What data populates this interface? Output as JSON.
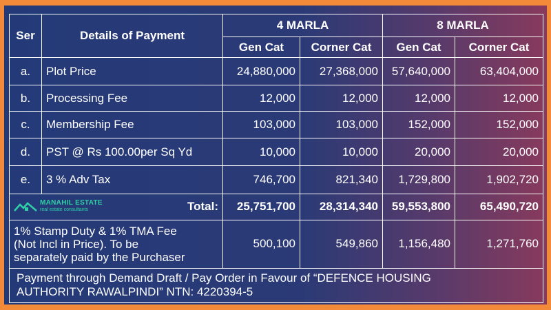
{
  "colors": {
    "accent_border": "#f28a3a",
    "logo_green": "#2fd0a5"
  },
  "header": {
    "ser": "Ser",
    "details": "Details of Payment",
    "group_4": "4 MARLA",
    "group_8": "8 MARLA",
    "sub_gen": "Gen Cat",
    "sub_corner": "Corner Cat"
  },
  "rows": [
    {
      "ser": "a.",
      "label": "Plot Price",
      "v": [
        "24,880,000",
        "27,368,000",
        "57,640,000",
        "63,404,000"
      ]
    },
    {
      "ser": "b.",
      "label": "Processing Fee",
      "v": [
        "12,000",
        "12,000",
        "12,000",
        "12,000"
      ]
    },
    {
      "ser": "c.",
      "label": "Membership Fee",
      "v": [
        "103,000",
        "103,000",
        "152,000",
        "152,000"
      ]
    },
    {
      "ser": "d.",
      "label": "PST @ Rs 100.00per Sq Yd",
      "v": [
        "10,000",
        "10,000",
        "20,000",
        "20,000"
      ]
    },
    {
      "ser": "e.",
      "label": "3 % Adv Tax",
      "v": [
        "746,700",
        "821,340",
        "1,729,800",
        "1,902,720"
      ]
    }
  ],
  "total": {
    "label": "Total:",
    "v": [
      "25,751,700",
      "28,314,340",
      "59,553,800",
      "65,490,720"
    ]
  },
  "logo": {
    "title": "MANAHIL ESTATE",
    "subtitle": "real estate consultants",
    "icon": "house-roof-icon"
  },
  "stamp": {
    "line1": "1% Stamp Duty & 1% TMA Fee",
    "line2": "(Not Incl in Price). To be",
    "line3": "separately paid by the Purchaser",
    "v": [
      "500,100",
      "549,860",
      "1,156,480",
      "1,271,760"
    ]
  },
  "footer": {
    "line1": "Payment through Demand Draft / Pay Order in Favour of  “DEFENCE HOUSING",
    "line2": "AUTHORITY RAWALPINDI” NTN: 4220394-5"
  }
}
